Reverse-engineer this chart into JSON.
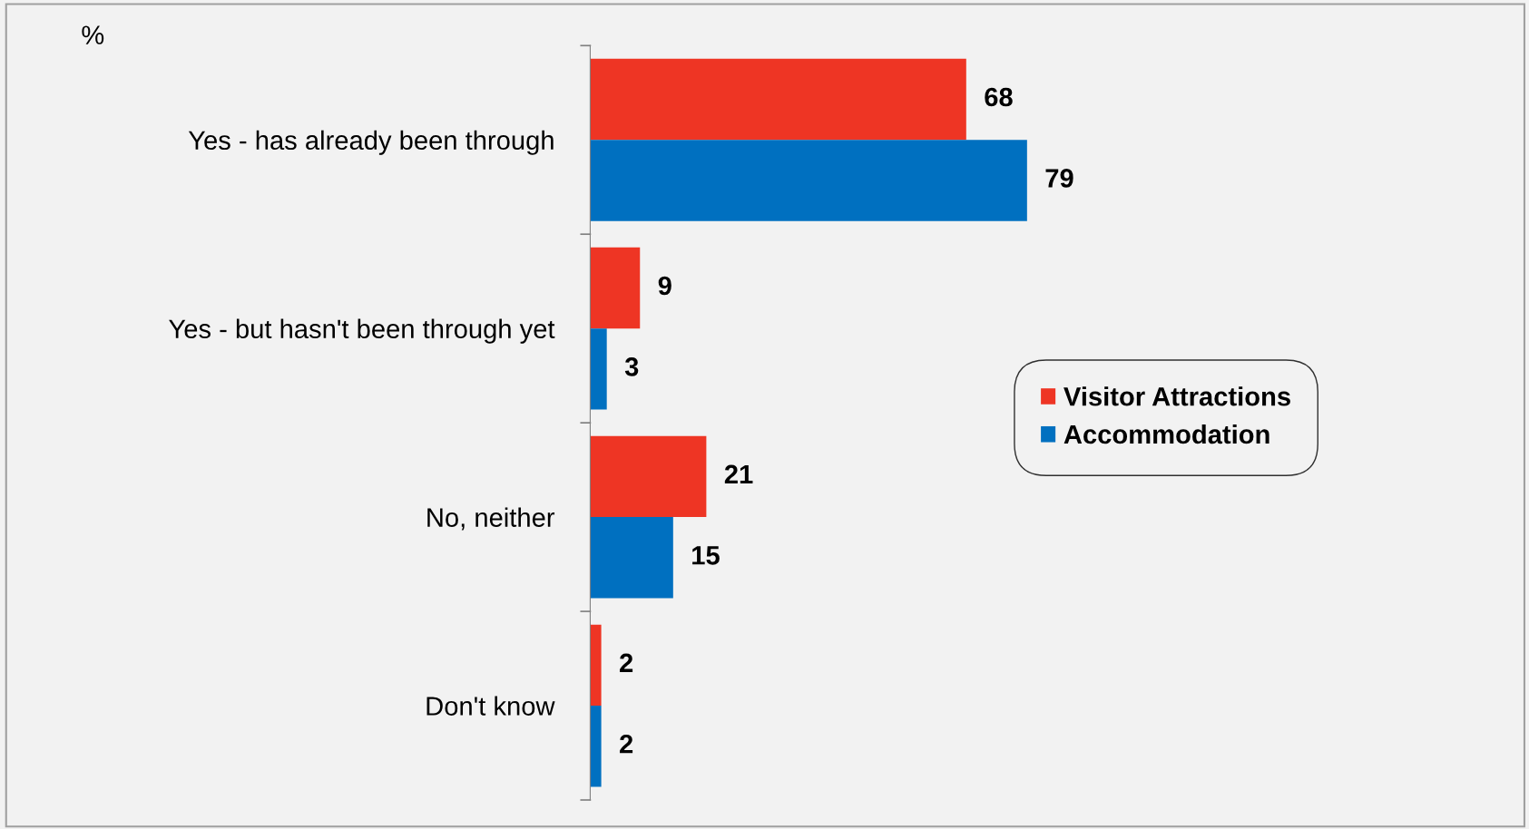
{
  "chart_data": {
    "type": "bar",
    "orientation": "horizontal",
    "categories": [
      "Yes - has already been through",
      "Yes - but hasn't been through yet",
      "No, neither",
      "Don't know"
    ],
    "series": [
      {
        "name": "Visitor Attractions",
        "color": "#ee3524",
        "values": [
          68,
          9,
          21,
          2
        ]
      },
      {
        "name": "Accommodation",
        "color": "#0070c0",
        "values": [
          79,
          3,
          15,
          2
        ]
      }
    ],
    "data_labels": true,
    "legend": "right",
    "grid": false,
    "tick_labels": "y",
    "annotations": [
      "%"
    ]
  }
}
